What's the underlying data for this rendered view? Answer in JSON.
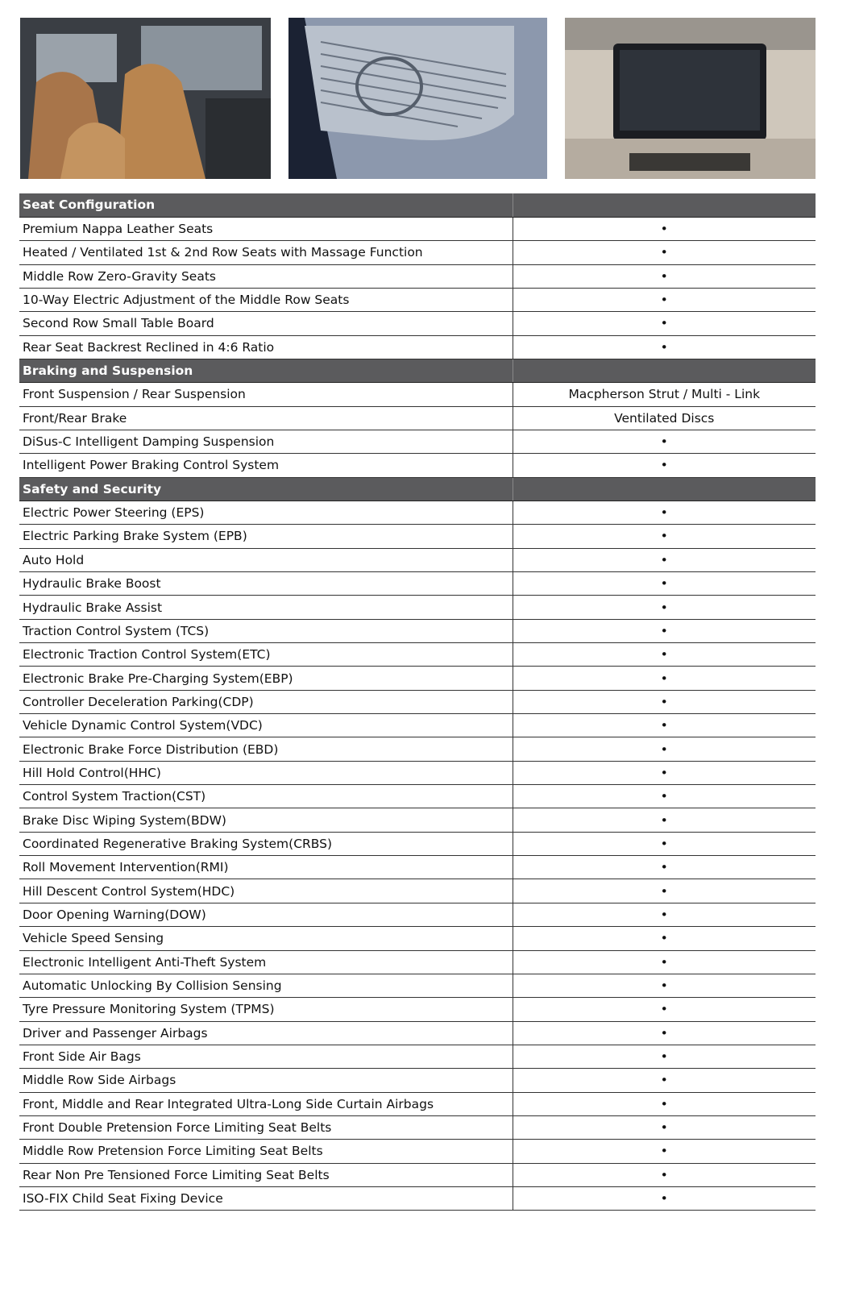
{
  "sections": [
    {
      "title": "Seat Configuration",
      "rows": [
        [
          "Premium Nappa Leather Seats",
          "•"
        ],
        [
          "Heated / Ventilated 1st & 2nd Row Seats with Massage Function",
          "•"
        ],
        [
          "Middle Row Zero-Gravity Seats",
          "•"
        ],
        [
          "10-Way Electric Adjustment of the Middle Row Seats",
          "•"
        ],
        [
          "Second Row Small Table Board",
          "•"
        ],
        [
          "Rear Seat Backrest Reclined in 4:6 Ratio",
          "•"
        ]
      ]
    },
    {
      "title": "Braking and Suspension",
      "rows": [
        [
          "Front Suspension / Rear Suspension",
          "Macpherson Strut / Multi - Link"
        ],
        [
          "Front/Rear Brake",
          "Ventilated Discs"
        ],
        [
          "DiSus-C Intelligent Damping Suspension",
          "•"
        ],
        [
          "Intelligent Power Braking Control System",
          "•"
        ]
      ]
    },
    {
      "title": "Safety and Security",
      "rows": [
        [
          "Electric Power Steering (EPS)",
          "•"
        ],
        [
          "Electric Parking Brake System (EPB)",
          "•"
        ],
        [
          "Auto Hold",
          "•"
        ],
        [
          "Hydraulic Brake Boost",
          "•"
        ],
        [
          "Hydraulic Brake Assist",
          "•"
        ],
        [
          "Traction Control System (TCS)",
          "•"
        ],
        [
          "Electronic Traction Control System(ETC)",
          "•"
        ],
        [
          "Electronic Brake Pre-Charging System(EBP)",
          "•"
        ],
        [
          "Controller Deceleration Parking(CDP)",
          "•"
        ],
        [
          "Vehicle Dynamic Control System(VDC)",
          "•"
        ],
        [
          "Electronic Brake Force Distribution (EBD)",
          "•"
        ],
        [
          "Hill Hold Control(HHC)",
          "•"
        ],
        [
          "Control System Traction(CST)",
          "•"
        ],
        [
          "Brake Disc Wiping System(BDW)",
          "•"
        ],
        [
          "Coordinated Regenerative Braking System(CRBS)",
          "•"
        ],
        [
          "Roll Movement Intervention(RMI)",
          "•"
        ],
        [
          "Hill Descent Control System(HDC)",
          "•"
        ],
        [
          "Door Opening Warning(DOW)",
          "•"
        ],
        [
          "Vehicle Speed Sensing",
          "•"
        ],
        [
          "Electronic Intelligent Anti-Theft System",
          "•"
        ],
        [
          "Automatic Unlocking By Collision Sensing",
          "•"
        ],
        [
          "Tyre Pressure Monitoring System (TPMS)",
          "•"
        ],
        [
          "Driver and Passenger Airbags",
          "•"
        ],
        [
          "Front Side Air Bags",
          "•"
        ],
        [
          "Middle Row Side Airbags",
          "•"
        ],
        [
          "Front, Middle and Rear Integrated Ultra-Long Side Curtain Airbags",
          "•"
        ],
        [
          "Front Double Pretension Force Limiting Seat Belts",
          "•"
        ],
        [
          "Middle Row Pretension Force Limiting Seat Belts",
          "•"
        ],
        [
          "Rear Non Pre Tensioned Force Limiting Seat Belts",
          "•"
        ],
        [
          "ISO-FIX Child Seat Fixing Device",
          "•"
        ]
      ]
    }
  ]
}
